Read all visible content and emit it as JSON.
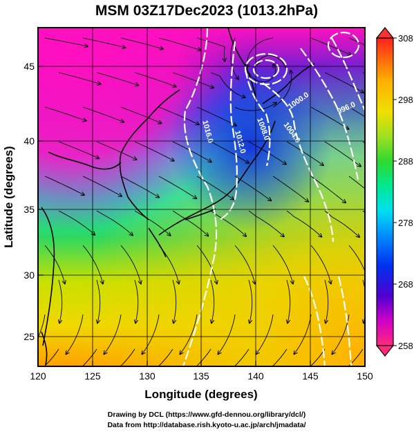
{
  "title": "MSM 03Z17Dec2023 (1013.2hPa)",
  "x_axis": {
    "label": "Longitude (degrees)",
    "ticks": [
      "120",
      "125",
      "130",
      "135",
      "140",
      "145",
      "150"
    ],
    "range": [
      120,
      150
    ]
  },
  "y_axis": {
    "label": "Latitude  (degrees)",
    "ticks": [
      "25",
      "30",
      "35",
      "40",
      "45"
    ],
    "range": [
      22.4,
      47.6
    ]
  },
  "colorbar": {
    "ticks": [
      "308",
      "298",
      "288",
      "278",
      "268",
      "258"
    ],
    "range": [
      258,
      308
    ],
    "colors": [
      "#ff2a7a",
      "#d000c8",
      "#5000d0",
      "#0030f0",
      "#0090ff",
      "#00e0f0",
      "#00e890",
      "#30d830",
      "#a0e020",
      "#f0e000",
      "#ffb000",
      "#ff6010",
      "#ff2020"
    ]
  },
  "contours": {
    "color": "#ffffff",
    "labels": [
      "1016.0",
      "1012.0",
      "1008.0",
      "1004.0",
      "1000.0",
      "996.0"
    ]
  },
  "field_colors": {
    "magenta": "#ff10c0",
    "purple": "#8a20c8",
    "blue": "#1040e0",
    "cyan": "#20e0e0",
    "green": "#30d860",
    "yellow": "#e8e000",
    "orange": "#ffb000",
    "streamline": "#000000"
  },
  "credits": {
    "line1": "Drawing by DCL (https://www.gfd-dennou.org/library/dcl/)",
    "line2": "Data from http://database.rish.kyoto-u.ac.jp/arch/jmadata/"
  }
}
